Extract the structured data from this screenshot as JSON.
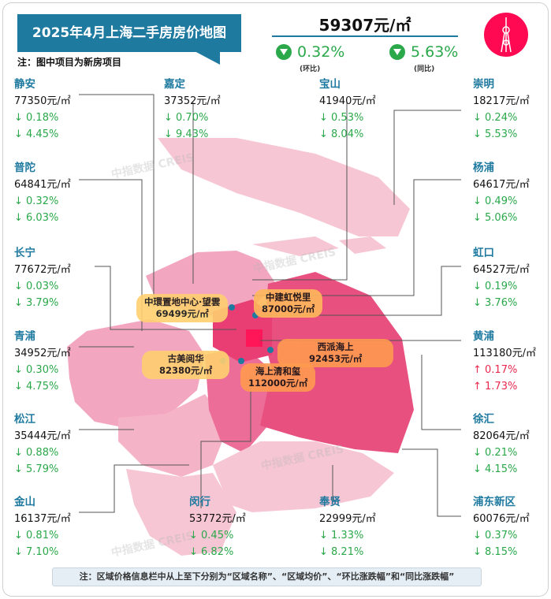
{
  "header": {
    "title": "2025年4月上海二手房房价地图",
    "note": "注：图中项目为新房项目",
    "avg_price": "59307元/㎡",
    "mom": {
      "value": "0.32%",
      "label": "(环比)"
    },
    "yoy": {
      "value": "5.63%",
      "label": "(同比)"
    },
    "icon": "oriental-pearl-tower-icon"
  },
  "districts": [
    {
      "name": "静安",
      "price": "77350元/㎡",
      "mom": "↓ 0.18%",
      "yoy": "↓ 4.45%"
    },
    {
      "name": "普陀",
      "price": "64841元/㎡",
      "mom": "↓ 0.32%",
      "yoy": "↓ 6.03%"
    },
    {
      "name": "长宁",
      "price": "77672元/㎡",
      "mom": "↓ 0.03%",
      "yoy": "↓ 3.79%"
    },
    {
      "name": "青浦",
      "price": "34952元/㎡",
      "mom": "↓ 0.30%",
      "yoy": "↓ 4.75%"
    },
    {
      "name": "松江",
      "price": "35444元/㎡",
      "mom": "↓ 0.88%",
      "yoy": "↓ 5.79%"
    },
    {
      "name": "金山",
      "price": "16137元/㎡",
      "mom": "↓ 0.81%",
      "yoy": "↓ 7.10%"
    },
    {
      "name": "嘉定",
      "price": "37352元/㎡",
      "mom": "↓ 0.70%",
      "yoy": "↓ 9.43%"
    },
    {
      "name": "闵行",
      "price": "53772元/㎡",
      "mom": "↓ 0.45%",
      "yoy": "↓ 6.82%"
    },
    {
      "name": "宝山",
      "price": "41940元/㎡",
      "mom": "↓ 0.53%",
      "yoy": "↓ 8.04%"
    },
    {
      "name": "奉贤",
      "price": "22999元/㎡",
      "mom": "↓ 1.33%",
      "yoy": "↓ 8.21%"
    },
    {
      "name": "崇明",
      "price": "18217元/㎡",
      "mom": "↓ 0.24%",
      "yoy": "↓ 5.53%"
    },
    {
      "name": "杨浦",
      "price": "64617元/㎡",
      "mom": "↓ 0.49%",
      "yoy": "↓ 5.06%"
    },
    {
      "name": "虹口",
      "price": "64527元/㎡",
      "mom": "↓ 0.19%",
      "yoy": "↓ 3.76%"
    },
    {
      "name": "黄浦",
      "price": "113180元/㎡",
      "mom": "↑ 0.17%",
      "yoy": "↑ 1.73%",
      "up": true
    },
    {
      "name": "徐汇",
      "price": "82064元/㎡",
      "mom": "↓ 0.21%",
      "yoy": "↓ 4.15%"
    },
    {
      "name": "浦东新区",
      "price": "60076元/㎡",
      "mom": "↓ 0.37%",
      "yoy": "↓ 8.15%"
    }
  ],
  "projects": [
    {
      "name": "中環置地中心·望雲",
      "price": "69499元/㎡"
    },
    {
      "name": "中建虹悦里",
      "price": "87000元/㎡"
    },
    {
      "name": "古美阅华",
      "price": "82380元/㎡"
    },
    {
      "name": "西派海上",
      "price": "92453元/㎡"
    },
    {
      "name": "海上清和玺",
      "price": "112000元/㎡"
    }
  ],
  "watermark": "中指数据 CREIS",
  "footer": "注：区域价格信息栏中从上至下分别为“区域名称”、“区域均价”、“环比涨跌幅”和“同比涨跌幅”",
  "colors": {
    "accent": "#1f7aa0",
    "down": "#2aa84a",
    "up": "#e8294d",
    "label_yellow": "#ffd070",
    "label_orange": "#ff9a50"
  }
}
